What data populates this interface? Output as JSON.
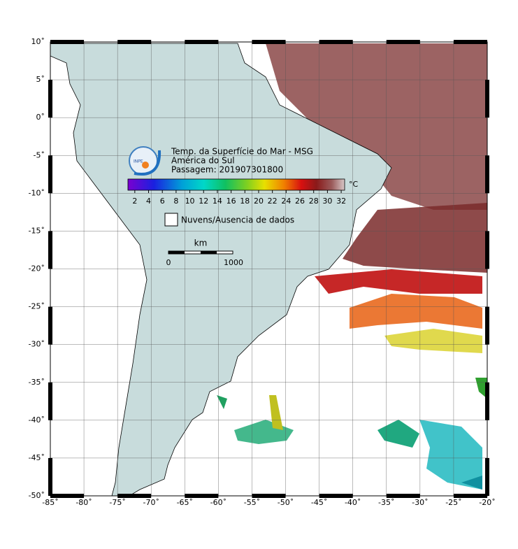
{
  "map": {
    "title": "Temp. da Superfície do Mar - MSG",
    "region": "América do Sul",
    "pass": "Passagem: 201907301800",
    "logo": "INPE",
    "colorbar": {
      "unit": "°C",
      "range": [
        1,
        32.5
      ],
      "ticks": [
        2,
        4,
        6,
        8,
        10,
        12,
        14,
        16,
        18,
        20,
        22,
        24,
        26,
        28,
        30,
        32
      ]
    },
    "legend": "Nuvens/Ausencia de dados",
    "scale": {
      "unit": "km",
      "start": 0,
      "end": 1000
    },
    "xlim": [
      -85,
      -20
    ],
    "ylim": [
      -50,
      10
    ],
    "xticks": [
      {
        "value": -85,
        "label": "-85˚"
      },
      {
        "value": -80,
        "label": "-80˚"
      },
      {
        "value": -75,
        "label": "-75˚"
      },
      {
        "value": -70,
        "label": "-70˚"
      },
      {
        "value": -65,
        "label": "-65˚"
      },
      {
        "value": -60,
        "label": "-60˚"
      },
      {
        "value": -55,
        "label": "-55˚"
      },
      {
        "value": -50,
        "label": "-50˚"
      },
      {
        "value": -45,
        "label": "-45˚"
      },
      {
        "value": -40,
        "label": "-40˚"
      },
      {
        "value": -35,
        "label": "-35˚"
      },
      {
        "value": -30,
        "label": "-30˚"
      },
      {
        "value": -25,
        "label": "-25˚"
      },
      {
        "value": -20,
        "label": "-20˚"
      }
    ],
    "yticks": [
      {
        "value": 10,
        "label": "10˚"
      },
      {
        "value": 5,
        "label": "5˚"
      },
      {
        "value": 0,
        "label": "0˚"
      },
      {
        "value": -5,
        "label": "-5˚"
      },
      {
        "value": -10,
        "label": "-10˚"
      },
      {
        "value": -15,
        "label": "-15˚"
      },
      {
        "value": -20,
        "label": "-20˚"
      },
      {
        "value": -25,
        "label": "-25˚"
      },
      {
        "value": -30,
        "label": "-30˚"
      },
      {
        "value": -35,
        "label": "-35˚"
      },
      {
        "value": -40,
        "label": "-40˚"
      },
      {
        "value": -45,
        "label": "-45˚"
      },
      {
        "value": -50,
        "label": "-50˚"
      }
    ]
  }
}
